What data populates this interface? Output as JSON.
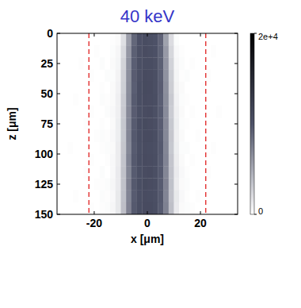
{
  "chart_data": {
    "type": "heatmap",
    "title": "40 keV",
    "x_label": "x [μm]",
    "y_label": "z [μm]",
    "xlim": [
      -34,
      34
    ],
    "ylim": [
      0,
      150
    ],
    "xticks": [
      -20,
      0,
      20
    ],
    "yticks": [
      0,
      25,
      50,
      75,
      100,
      125,
      150
    ],
    "vlines": [
      -22,
      22
    ],
    "x_bins": [
      -34,
      -32,
      -30,
      -28,
      -26,
      -24,
      -22,
      -20,
      -18,
      -16,
      -14,
      -12,
      -10,
      -8,
      -6,
      -4,
      -2,
      0,
      2,
      4,
      6,
      8,
      10,
      12,
      14,
      16,
      18,
      20,
      22,
      24,
      26,
      28,
      30,
      32,
      34
    ],
    "z_bins": [
      0,
      10,
      20,
      30,
      40,
      50,
      60,
      70,
      80,
      90,
      100,
      110,
      120,
      130,
      140,
      150
    ],
    "cells": [
      [
        0,
        0,
        0,
        0,
        0,
        0,
        0,
        0,
        0,
        0,
        100,
        300,
        1800,
        5600,
        8800,
        10200,
        10600,
        10400,
        10100,
        9000,
        5400,
        2000,
        200,
        0,
        0,
        0,
        0,
        0,
        0,
        0,
        0,
        0,
        0,
        0
      ],
      [
        0,
        0,
        0,
        0,
        0,
        0,
        0,
        100,
        0,
        0,
        200,
        500,
        2200,
        6000,
        9200,
        10300,
        10700,
        10500,
        10200,
        9100,
        5900,
        2300,
        400,
        100,
        0,
        0,
        0,
        0,
        0,
        100,
        0,
        0,
        0,
        0
      ],
      [
        0,
        0,
        0,
        0,
        100,
        0,
        0,
        0,
        200,
        0,
        300,
        600,
        2500,
        6300,
        9300,
        10400,
        10600,
        10600,
        10300,
        9200,
        6100,
        2600,
        500,
        200,
        0,
        100,
        0,
        0,
        0,
        0,
        0,
        0,
        0,
        0
      ],
      [
        0,
        0,
        0,
        0,
        0,
        0,
        100,
        0,
        0,
        200,
        200,
        700,
        2700,
        6500,
        9400,
        10300,
        10800,
        10700,
        10400,
        9300,
        6300,
        2800,
        600,
        100,
        200,
        0,
        0,
        0,
        100,
        0,
        0,
        0,
        0,
        0
      ],
      [
        0,
        0,
        0,
        0,
        0,
        0,
        0,
        0,
        100,
        0,
        300,
        800,
        2800,
        6600,
        9300,
        10500,
        10900,
        10800,
        10400,
        9400,
        6500,
        2900,
        700,
        300,
        0,
        0,
        0,
        100,
        0,
        0,
        0,
        0,
        0,
        0
      ],
      [
        0,
        0,
        0,
        100,
        0,
        0,
        0,
        0,
        200,
        100,
        300,
        900,
        3000,
        6700,
        9500,
        10500,
        10800,
        10700,
        10500,
        9300,
        6600,
        3100,
        800,
        200,
        100,
        0,
        0,
        0,
        0,
        0,
        0,
        0,
        0,
        0
      ],
      [
        0,
        0,
        0,
        0,
        0,
        0,
        100,
        0,
        0,
        200,
        400,
        900,
        3100,
        6800,
        9400,
        10400,
        10700,
        10800,
        10300,
        9500,
        6700,
        3000,
        900,
        300,
        0,
        100,
        0,
        0,
        0,
        0,
        100,
        0,
        0,
        0
      ],
      [
        0,
        0,
        0,
        0,
        0,
        100,
        0,
        0,
        100,
        0,
        300,
        1000,
        3200,
        6900,
        9500,
        10600,
        10900,
        10700,
        10400,
        9400,
        6800,
        3200,
        1000,
        200,
        100,
        0,
        0,
        0,
        0,
        0,
        0,
        0,
        0,
        0
      ],
      [
        0,
        0,
        0,
        0,
        0,
        0,
        0,
        100,
        200,
        100,
        400,
        1000,
        3200,
        7000,
        9600,
        10500,
        10800,
        10800,
        10500,
        9500,
        6900,
        3300,
        900,
        300,
        0,
        0,
        100,
        0,
        0,
        0,
        0,
        0,
        0,
        0
      ],
      [
        0,
        0,
        100,
        0,
        0,
        0,
        0,
        0,
        100,
        200,
        300,
        1100,
        3300,
        6900,
        9500,
        10400,
        10700,
        10600,
        10400,
        9600,
        7000,
        3200,
        1000,
        200,
        200,
        0,
        0,
        0,
        0,
        100,
        0,
        0,
        0,
        0
      ],
      [
        0,
        0,
        0,
        0,
        0,
        0,
        100,
        0,
        0,
        100,
        400,
        1100,
        3400,
        7100,
        9600,
        10500,
        10800,
        10700,
        10500,
        9500,
        7100,
        3400,
        1100,
        300,
        0,
        100,
        0,
        0,
        0,
        0,
        0,
        0,
        0,
        0
      ],
      [
        0,
        0,
        0,
        0,
        0,
        100,
        0,
        0,
        200,
        0,
        400,
        1200,
        3500,
        7000,
        9500,
        10400,
        10700,
        10800,
        10400,
        9600,
        7000,
        3500,
        1200,
        400,
        100,
        0,
        0,
        0,
        100,
        0,
        0,
        0,
        0,
        0
      ],
      [
        0,
        0,
        0,
        0,
        0,
        0,
        0,
        100,
        100,
        200,
        500,
        1200,
        3500,
        7200,
        9600,
        10500,
        10900,
        10700,
        10500,
        9500,
        7200,
        3600,
        1100,
        300,
        200,
        0,
        0,
        0,
        0,
        0,
        0,
        0,
        0,
        0
      ],
      [
        0,
        0,
        0,
        100,
        0,
        0,
        0,
        0,
        200,
        100,
        400,
        1300,
        3600,
        7100,
        9500,
        10400,
        10700,
        10600,
        10400,
        9600,
        7100,
        3500,
        1300,
        400,
        100,
        0,
        100,
        0,
        0,
        0,
        0,
        0,
        0,
        0
      ],
      [
        0,
        0,
        0,
        0,
        0,
        0,
        100,
        0,
        100,
        200,
        500,
        1300,
        3700,
        7200,
        9600,
        10500,
        10800,
        10800,
        10500,
        9500,
        7300,
        3700,
        1200,
        300,
        200,
        100,
        0,
        0,
        0,
        0,
        0,
        0,
        0,
        0
      ]
    ],
    "colorbar": {
      "range": [
        0,
        20000
      ],
      "ticks": [
        0,
        {
          "value": 20000,
          "label": "2e+4"
        }
      ]
    }
  }
}
